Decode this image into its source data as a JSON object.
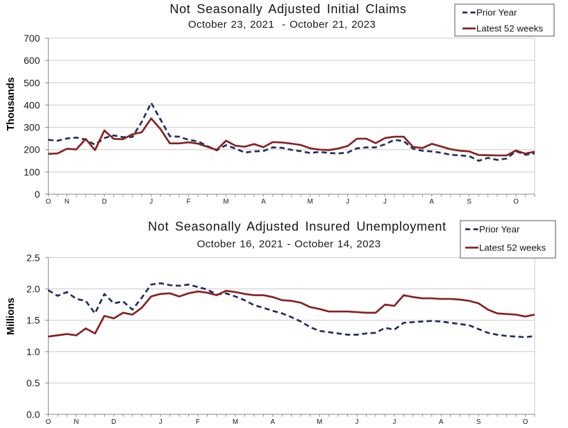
{
  "page": {
    "background": "#ffffff",
    "description": "Two stacked line charts of U.S. unemployment insurance weekly claims data"
  },
  "colors": {
    "prior_year": "#1f2f62",
    "latest": "#86221f",
    "grid": "#c9c9c9",
    "plot_border": "#c9c9c9",
    "axis": "#8a8a8a",
    "tick": "#8a8a8a",
    "text": "#141414",
    "tick_label": "#1a1a1a",
    "legend_border": "#555555",
    "legend_bg": "#ffffff"
  },
  "legend": {
    "items": [
      {
        "label": "Prior Year",
        "style": "dashed",
        "color_key": "prior_year"
      },
      {
        "label": "Latest 52 weeks",
        "style": "solid",
        "color_key": "latest"
      }
    ]
  },
  "chart_data": [
    {
      "type": "line",
      "title": "Not Seasonally Adjusted Initial Claims",
      "subtitle": "October 23, 2021  - October 21, 2023",
      "ylabel": "Thousands",
      "xlabel": "",
      "units": "thousands of claims",
      "ylim": [
        0,
        700
      ],
      "ytick_step": 100,
      "ytick_labels": [
        "0",
        "100",
        "200",
        "300",
        "400",
        "500",
        "600",
        "700"
      ],
      "grid": true,
      "legend_position": "top-right",
      "x_weeks": 53,
      "x_month_labels": [
        {
          "label": "O",
          "week": 0
        },
        {
          "label": "N",
          "week": 2
        },
        {
          "label": "D",
          "week": 6
        },
        {
          "label": "J",
          "week": 11
        },
        {
          "label": "F",
          "week": 15
        },
        {
          "label": "M",
          "week": 19
        },
        {
          "label": "A",
          "week": 23
        },
        {
          "label": "M",
          "week": 28
        },
        {
          "label": "J",
          "week": 32
        },
        {
          "label": "J",
          "week": 36
        },
        {
          "label": "A",
          "week": 41
        },
        {
          "label": "S",
          "week": 45
        },
        {
          "label": "O",
          "week": 50
        }
      ],
      "series": [
        {
          "name": "Prior Year",
          "style": "dashed",
          "color_key": "prior_year",
          "values": [
            244,
            240,
            250,
            254,
            245,
            222,
            252,
            264,
            256,
            257,
            325,
            410,
            335,
            260,
            258,
            244,
            237,
            216,
            197,
            220,
            205,
            187,
            192,
            194,
            210,
            208,
            199,
            193,
            185,
            190,
            185,
            183,
            187,
            206,
            210,
            210,
            224,
            244,
            238,
            204,
            195,
            192,
            186,
            177,
            174,
            171,
            150,
            163,
            154,
            160,
            193,
            177,
            183
          ]
        },
        {
          "name": "Latest 52 weeks",
          "style": "solid",
          "color_key": "latest",
          "values": [
            181,
            183,
            204,
            201,
            248,
            198,
            286,
            248,
            247,
            269,
            278,
            340,
            292,
            228,
            228,
            233,
            227,
            213,
            199,
            240,
            218,
            213,
            225,
            211,
            234,
            232,
            227,
            221,
            206,
            200,
            198,
            205,
            216,
            249,
            249,
            229,
            252,
            258,
            258,
            212,
            207,
            226,
            214,
            202,
            195,
            192,
            176,
            175,
            174,
            174,
            196,
            182,
            191
          ]
        }
      ]
    },
    {
      "type": "line",
      "title": "Not Seasonally Adjusted Insured Unemployment",
      "subtitle": "October 16, 2021 - October 14, 2023",
      "ylabel": "Millions",
      "xlabel": "",
      "units": "millions of persons",
      "ylim": [
        0.0,
        2.5
      ],
      "ytick_step": 0.5,
      "ytick_labels": [
        "0.0",
        "0.5",
        "1.0",
        "1.5",
        "2.0",
        "2.5"
      ],
      "grid": true,
      "legend_position": "top-right",
      "x_weeks": 53,
      "x_month_labels": [
        {
          "label": "O",
          "week": 0
        },
        {
          "label": "N",
          "week": 3
        },
        {
          "label": "D",
          "week": 7
        },
        {
          "label": "J",
          "week": 12
        },
        {
          "label": "F",
          "week": 16
        },
        {
          "label": "M",
          "week": 20
        },
        {
          "label": "A",
          "week": 24
        },
        {
          "label": "M",
          "week": 29
        },
        {
          "label": "J",
          "week": 33
        },
        {
          "label": "J",
          "week": 37
        },
        {
          "label": "A",
          "week": 42
        },
        {
          "label": "S",
          "week": 46
        },
        {
          "label": "O",
          "week": 51
        }
      ],
      "series": [
        {
          "name": "Prior Year",
          "style": "dashed",
          "color_key": "prior_year",
          "values": [
            1.98,
            1.89,
            1.95,
            1.84,
            1.81,
            1.61,
            1.92,
            1.77,
            1.8,
            1.67,
            1.86,
            2.07,
            2.09,
            2.06,
            2.05,
            2.07,
            2.03,
            1.99,
            1.91,
            1.93,
            1.88,
            1.82,
            1.74,
            1.7,
            1.65,
            1.61,
            1.55,
            1.48,
            1.39,
            1.33,
            1.31,
            1.29,
            1.27,
            1.27,
            1.29,
            1.3,
            1.38,
            1.35,
            1.46,
            1.47,
            1.48,
            1.49,
            1.48,
            1.46,
            1.44,
            1.42,
            1.36,
            1.3,
            1.27,
            1.25,
            1.24,
            1.23,
            1.25
          ]
        },
        {
          "name": "Latest 52 weeks",
          "style": "solid",
          "color_key": "latest",
          "values": [
            1.24,
            1.26,
            1.28,
            1.26,
            1.37,
            1.29,
            1.57,
            1.53,
            1.62,
            1.59,
            1.7,
            1.88,
            1.92,
            1.93,
            1.88,
            1.93,
            1.96,
            1.94,
            1.9,
            1.97,
            1.95,
            1.92,
            1.9,
            1.9,
            1.87,
            1.82,
            1.81,
            1.78,
            1.71,
            1.68,
            1.64,
            1.64,
            1.64,
            1.63,
            1.62,
            1.62,
            1.75,
            1.73,
            1.9,
            1.87,
            1.85,
            1.85,
            1.84,
            1.84,
            1.83,
            1.81,
            1.77,
            1.67,
            1.61,
            1.6,
            1.59,
            1.56,
            1.59
          ]
        }
      ]
    }
  ]
}
